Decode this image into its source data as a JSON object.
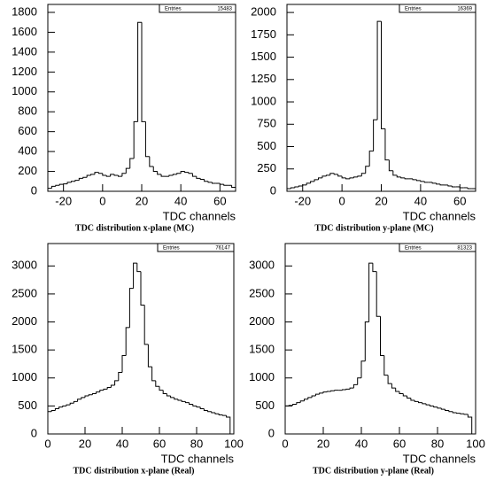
{
  "chart_data": [
    {
      "type": "histogram",
      "title": "TDC distribution x-plane (MC)",
      "x_label": "TDC channels",
      "stats": {
        "label": "Entries",
        "value": 15483
      },
      "color": "#000000",
      "bins": [
        -28,
        -26,
        -24,
        -22,
        -20,
        -18,
        -16,
        -14,
        -12,
        -10,
        -8,
        -6,
        -4,
        -2,
        0,
        2,
        4,
        6,
        8,
        10,
        12,
        14,
        16,
        18,
        20,
        22,
        24,
        26,
        28,
        30,
        32,
        34,
        36,
        38,
        40,
        42,
        44,
        46,
        48,
        50,
        52,
        54,
        56,
        58,
        60,
        62,
        64,
        66,
        68
      ],
      "values": [
        30,
        50,
        60,
        70,
        75,
        90,
        100,
        110,
        130,
        140,
        160,
        170,
        190,
        180,
        160,
        150,
        170,
        160,
        150,
        180,
        230,
        330,
        700,
        1700,
        700,
        350,
        250,
        200,
        170,
        150,
        150,
        160,
        170,
        180,
        200,
        190,
        180,
        150,
        130,
        120,
        100,
        90,
        80,
        80,
        70,
        60,
        60,
        40
      ],
      "xlim": [
        -28,
        68
      ],
      "xticks": [
        -20,
        0,
        20,
        40,
        60
      ],
      "ylim": [
        0,
        1880
      ],
      "yticks": [
        0,
        200,
        400,
        600,
        800,
        1000,
        1200,
        1400,
        1600,
        1800
      ]
    },
    {
      "type": "histogram",
      "title": "TDC distribution y-plane (MC)",
      "x_label": "TDC channels",
      "stats": {
        "label": "Entries",
        "value": 16369
      },
      "color": "#000000",
      "bins": [
        -28,
        -26,
        -24,
        -22,
        -20,
        -18,
        -16,
        -14,
        -12,
        -10,
        -8,
        -6,
        -4,
        -2,
        0,
        2,
        4,
        6,
        8,
        10,
        12,
        14,
        16,
        18,
        20,
        22,
        24,
        26,
        28,
        30,
        32,
        34,
        36,
        38,
        40,
        42,
        44,
        46,
        48,
        50,
        52,
        54,
        56,
        58,
        60,
        62,
        64,
        66,
        68
      ],
      "values": [
        30,
        40,
        50,
        60,
        70,
        90,
        110,
        130,
        150,
        170,
        180,
        200,
        190,
        170,
        150,
        140,
        150,
        160,
        170,
        200,
        280,
        450,
        800,
        1900,
        700,
        350,
        230,
        180,
        160,
        150,
        140,
        140,
        130,
        120,
        110,
        100,
        100,
        90,
        80,
        70,
        70,
        60,
        50,
        50,
        40,
        40,
        30,
        30
      ],
      "xlim": [
        -28,
        68
      ],
      "xticks": [
        -20,
        0,
        20,
        40,
        60
      ],
      "ylim": [
        0,
        2090
      ],
      "yticks": [
        0,
        250,
        500,
        750,
        1000,
        1250,
        1500,
        1750,
        2000
      ]
    },
    {
      "type": "histogram",
      "title": "TDC distribution x-plane (Real)",
      "x_label": "TDC channels",
      "stats": {
        "label": "Entries",
        "value": 76147
      },
      "color": "#000000",
      "bins": [
        0,
        2,
        4,
        6,
        8,
        10,
        12,
        14,
        16,
        18,
        20,
        22,
        24,
        26,
        28,
        30,
        32,
        34,
        36,
        38,
        40,
        42,
        44,
        46,
        48,
        50,
        52,
        54,
        56,
        58,
        60,
        62,
        64,
        66,
        68,
        70,
        72,
        74,
        76,
        78,
        80,
        82,
        84,
        86,
        88,
        90,
        92,
        94,
        96,
        98
      ],
      "values": [
        400,
        420,
        450,
        480,
        500,
        520,
        550,
        580,
        620,
        650,
        680,
        700,
        720,
        750,
        780,
        800,
        830,
        870,
        950,
        1100,
        1400,
        1900,
        2600,
        3050,
        2900,
        2300,
        1600,
        1200,
        950,
        850,
        780,
        720,
        680,
        650,
        620,
        600,
        580,
        560,
        530,
        500,
        480,
        450,
        420,
        400,
        380,
        360,
        340,
        330,
        300
      ],
      "xlim": [
        0,
        100
      ],
      "xticks": [
        0,
        20,
        40,
        60,
        80,
        100
      ],
      "ylim": [
        0,
        3400
      ],
      "yticks": [
        0,
        500,
        1000,
        1500,
        2000,
        2500,
        3000
      ]
    },
    {
      "type": "histogram",
      "title": "TDC distribution y-plane (Real)",
      "x_label": "TDC channels",
      "stats": {
        "label": "Entries",
        "value": 81323
      },
      "color": "#000000",
      "bins": [
        0,
        2,
        4,
        6,
        8,
        10,
        12,
        14,
        16,
        18,
        20,
        22,
        24,
        26,
        28,
        30,
        32,
        34,
        36,
        38,
        40,
        42,
        44,
        46,
        48,
        50,
        52,
        54,
        56,
        58,
        60,
        62,
        64,
        66,
        68,
        70,
        72,
        74,
        76,
        78,
        80,
        82,
        84,
        86,
        88,
        90,
        92,
        94,
        96,
        98
      ],
      "values": [
        500,
        510,
        530,
        560,
        590,
        620,
        650,
        680,
        710,
        730,
        750,
        760,
        770,
        780,
        780,
        790,
        800,
        820,
        880,
        1000,
        1300,
        2000,
        3050,
        2900,
        2100,
        1400,
        1050,
        900,
        820,
        760,
        720,
        680,
        640,
        600,
        580,
        560,
        540,
        520,
        500,
        480,
        460,
        440,
        420,
        400,
        380,
        370,
        360,
        350,
        300
      ],
      "xlim": [
        0,
        100
      ],
      "xticks": [
        0,
        20,
        40,
        60,
        80,
        100
      ],
      "ylim": [
        0,
        3400
      ],
      "yticks": [
        0,
        500,
        1000,
        1500,
        2000,
        2500,
        3000
      ]
    }
  ]
}
